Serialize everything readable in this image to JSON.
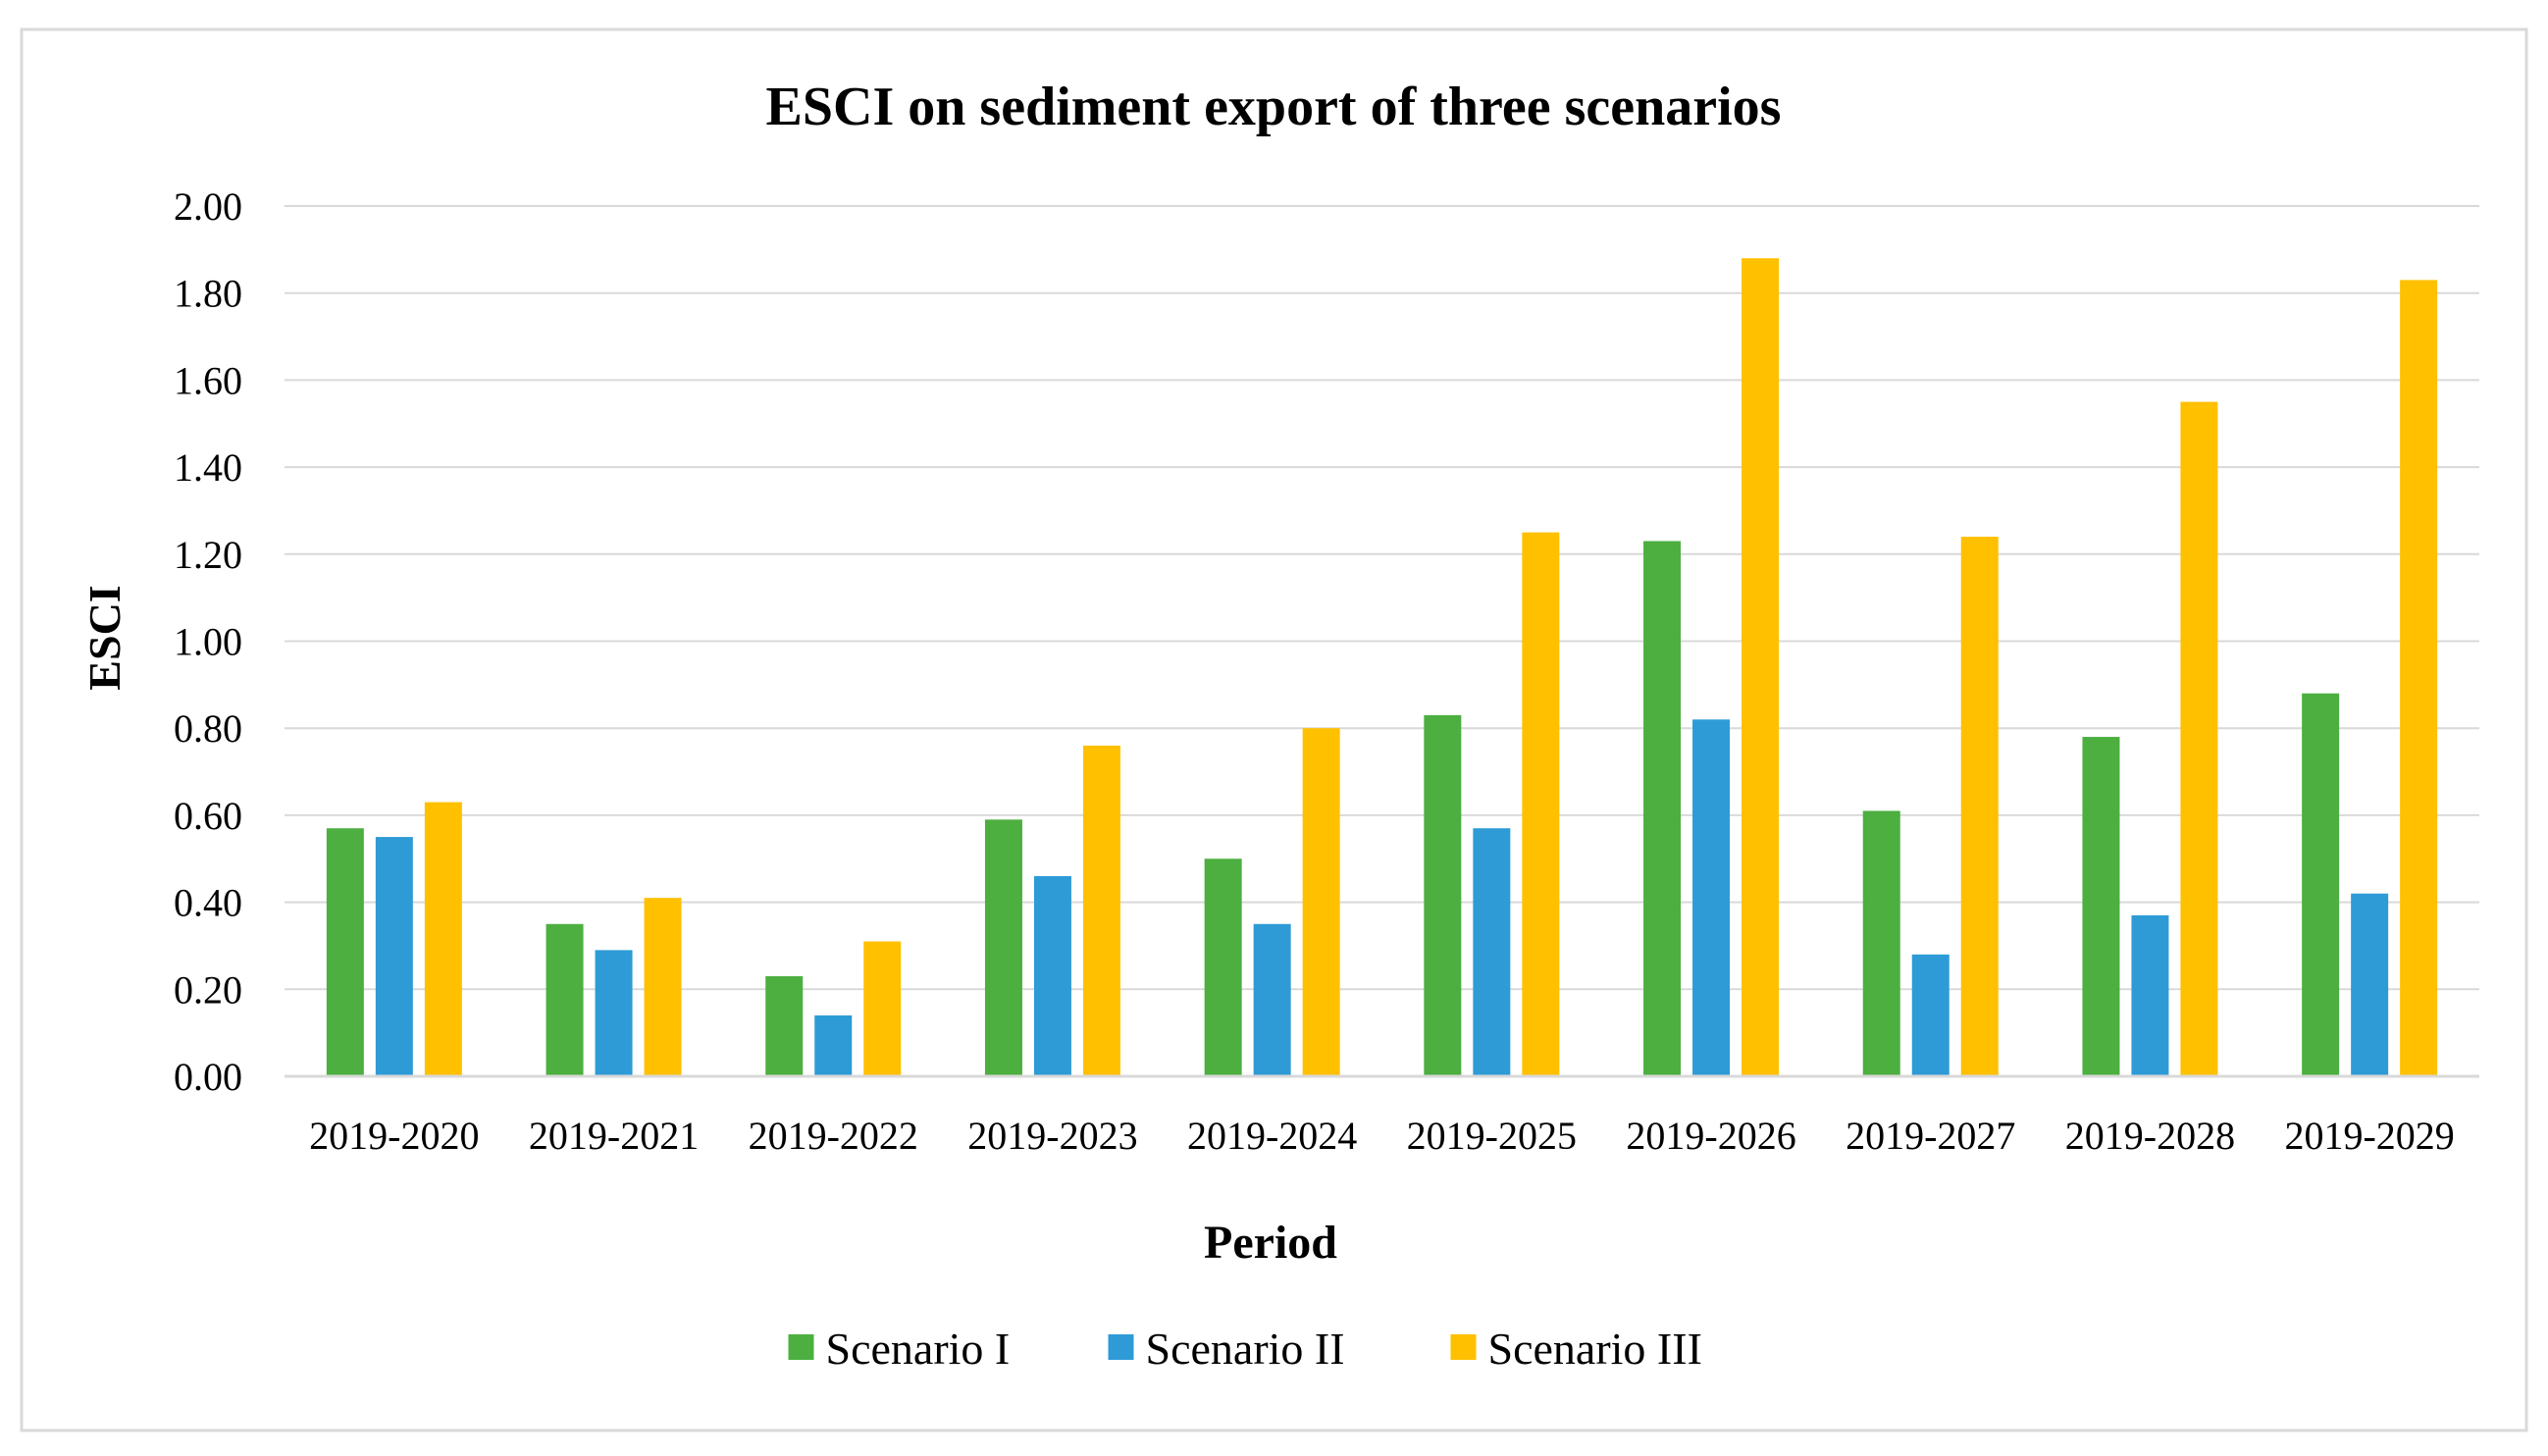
{
  "chart_data": {
    "type": "bar",
    "title": "ESCI on sediment export of three scenarios",
    "xlabel": "Period",
    "ylabel": "ESCI",
    "ylim": [
      0,
      2
    ],
    "y_ticks": [
      "0.00",
      "0.20",
      "0.40",
      "0.60",
      "0.80",
      "1.00",
      "1.20",
      "1.40",
      "1.60",
      "1.80",
      "2.00"
    ],
    "y_tick_values": [
      0,
      0.2,
      0.4,
      0.6,
      0.8,
      1.0,
      1.2,
      1.4,
      1.6,
      1.8,
      2.0
    ],
    "grid": true,
    "legend_position": "bottom",
    "categories": [
      "2019-2020",
      "2019-2021",
      "2019-2022",
      "2019-2023",
      "2019-2024",
      "2019-2025",
      "2019-2026",
      "2019-2027",
      "2019-2028",
      "2019-2029"
    ],
    "series": [
      {
        "name": "Scenario I",
        "color": "#4caf40",
        "values": [
          0.57,
          0.35,
          0.23,
          0.59,
          0.5,
          0.83,
          1.23,
          0.61,
          0.78,
          0.88
        ]
      },
      {
        "name": "Scenario II",
        "color": "#2e9bd6",
        "values": [
          0.55,
          0.29,
          0.14,
          0.46,
          0.35,
          0.57,
          0.82,
          0.28,
          0.37,
          0.42
        ]
      },
      {
        "name": "Scenario III",
        "color": "#ffc000",
        "values": [
          0.63,
          0.41,
          0.31,
          0.76,
          0.8,
          1.25,
          1.88,
          1.24,
          1.55,
          1.83
        ]
      }
    ]
  }
}
